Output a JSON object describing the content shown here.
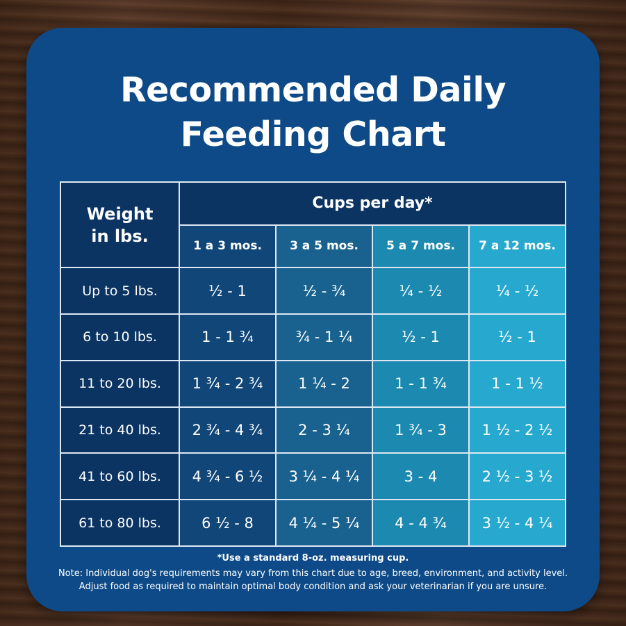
{
  "title": {
    "line1": "Recommended Daily",
    "line2": "Feeding Chart"
  },
  "table": {
    "weight_header": {
      "line1": "Weight",
      "line2": "in lbs."
    },
    "cups_header": "Cups per day*",
    "age_columns": [
      "1 a 3 mos.",
      "3 a 5 mos.",
      "5 a 7 mos.",
      "7 a 12 mos."
    ],
    "rows": [
      {
        "weight": "Up to 5 lbs.",
        "cups": [
          "½ - 1",
          "½ - ¾",
          "¼ - ½",
          "¼ - ½"
        ]
      },
      {
        "weight": "6 to 10 lbs.",
        "cups": [
          "1 - 1 ¾",
          "¾ - 1 ¼",
          "½ - 1",
          "½ - 1"
        ]
      },
      {
        "weight": "11 to 20 lbs.",
        "cups": [
          "1 ¾ - 2 ¾",
          "1 ¼ - 2",
          "1 - 1 ¾",
          "1 - 1 ½"
        ]
      },
      {
        "weight": "21 to 40 lbs.",
        "cups": [
          "2 ¾ - 4 ¾",
          "2 - 3 ¼",
          "1 ¾ - 3",
          "1 ½ - 2 ½"
        ]
      },
      {
        "weight": "41 to 60 lbs.",
        "cups": [
          "4 ¾ - 6 ½",
          "3 ¼ - 4 ¼",
          "3 - 4",
          "2 ½ - 3 ½"
        ]
      },
      {
        "weight": "61 to 80 lbs.",
        "cups": [
          "6 ½ - 8",
          "4 ¼ - 5 ¼",
          "4 - 4 ¾",
          "3 ½ - 4 ¼"
        ]
      }
    ]
  },
  "notes": {
    "measure": "*Use a standard 8-oz. measuring cup.",
    "line1": "Note: Individual dog's requirements may vary from this chart due to age, breed, environment, and activity level.",
    "line2": "Adjust food as required to maintain optimal body condition and ask your veterinarian if you are unsure."
  },
  "colors": {
    "card": "#0d4a87",
    "header_dark": "#0b3463",
    "col1": "#114678",
    "col2": "#19628f",
    "col3": "#1c8ab0",
    "col4": "#27a9cf"
  }
}
